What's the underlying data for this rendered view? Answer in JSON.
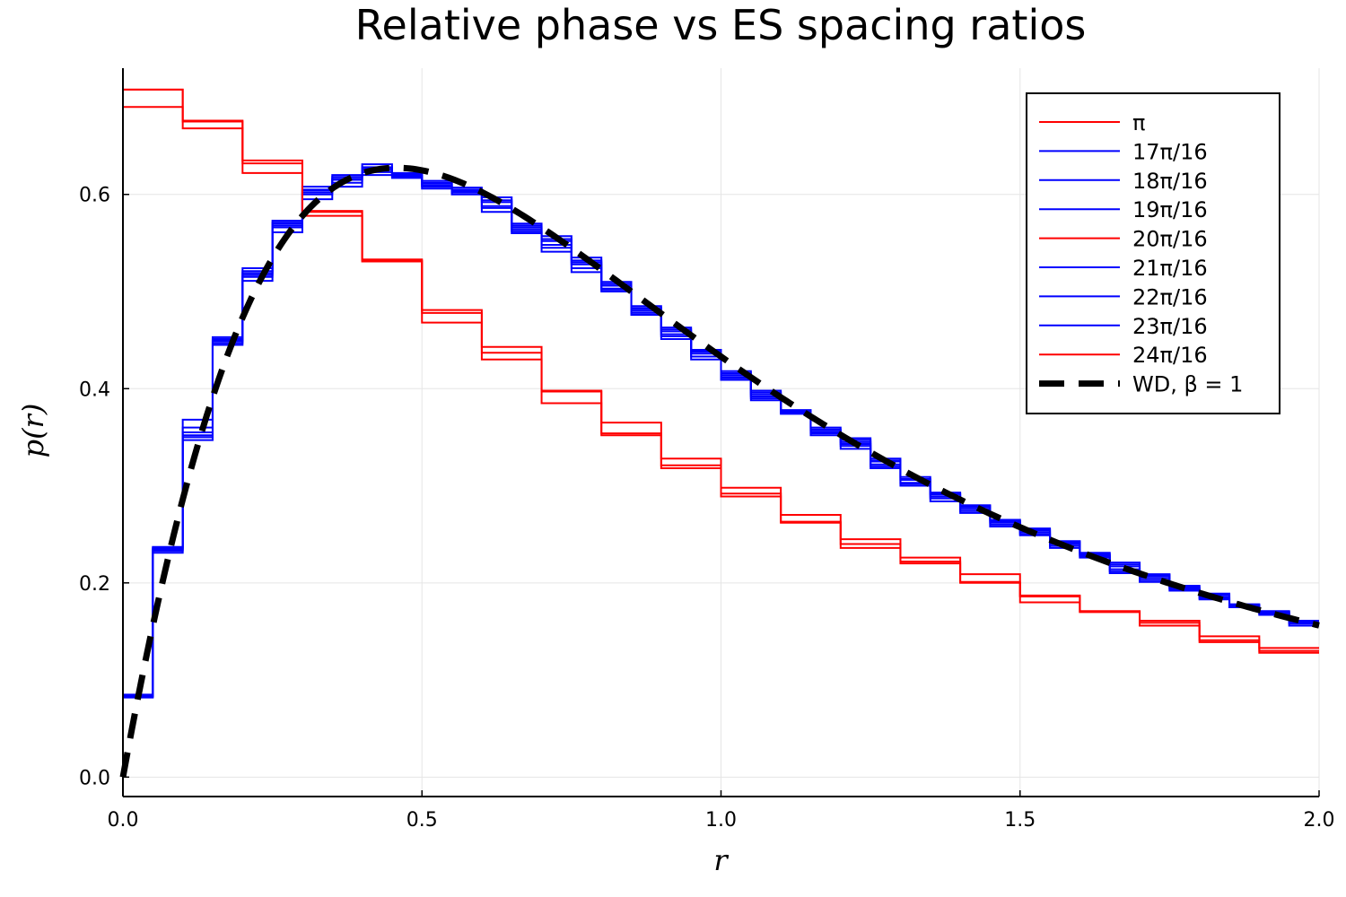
{
  "chart_data": {
    "type": "step",
    "title": "Relative phase vs ES spacing ratios",
    "xlabel": "r",
    "ylabel": "p(r)",
    "xlim": [
      0,
      2
    ],
    "ylim": [
      -0.02,
      0.73
    ],
    "xticks": [
      0,
      0.5,
      1,
      1.5,
      2
    ],
    "xtick_labels": [
      "0.0",
      "0.5",
      "1.0",
      "1.5",
      "2.0"
    ],
    "yticks": [
      0,
      0.2,
      0.4,
      0.6
    ],
    "ytick_labels": [
      "0.0",
      "0.2",
      "0.4",
      "0.6"
    ],
    "grid": true,
    "legend_position": "top-right",
    "bin_edges_blue": [
      0,
      0.05,
      0.1,
      0.15,
      0.2,
      0.25,
      0.3,
      0.35,
      0.4,
      0.45,
      0.5,
      0.55,
      0.6,
      0.65,
      0.7,
      0.75,
      0.8,
      0.85,
      0.9,
      0.95,
      1.0,
      1.05,
      1.1,
      1.15,
      1.2,
      1.25,
      1.3,
      1.35,
      1.4,
      1.45,
      1.5,
      1.55,
      1.6,
      1.65,
      1.7,
      1.75,
      1.8,
      1.85,
      1.9,
      1.95,
      2.0
    ],
    "bin_edges_red": [
      0,
      0.1,
      0.2,
      0.3,
      0.4,
      0.5,
      0.6,
      0.7,
      0.8,
      0.9,
      1.0,
      1.1,
      1.2,
      1.3,
      1.4,
      1.5,
      1.6,
      1.7,
      1.8,
      1.9,
      2.0
    ],
    "series": [
      {
        "name": "π",
        "color": "#ff0000",
        "binning": "red",
        "values": [
          0.708,
          0.675,
          0.635,
          0.583,
          0.533,
          0.481,
          0.443,
          0.398,
          0.365,
          0.328,
          0.298,
          0.27,
          0.245,
          0.226,
          0.209,
          0.187,
          0.171,
          0.161,
          0.145,
          0.133
        ]
      },
      {
        "name": "17π/16",
        "color": "#0000ff",
        "binning": "blue",
        "values": [
          0.083,
          0.237,
          0.368,
          0.453,
          0.524,
          0.573,
          0.608,
          0.62,
          0.631,
          0.622,
          0.614,
          0.607,
          0.597,
          0.57,
          0.557,
          0.535,
          0.51,
          0.485,
          0.463,
          0.44,
          0.418,
          0.398,
          0.378,
          0.36,
          0.349,
          0.328,
          0.309,
          0.293,
          0.28,
          0.265,
          0.256,
          0.243,
          0.231,
          0.221,
          0.209,
          0.197,
          0.189,
          0.178,
          0.171,
          0.161
        ]
      },
      {
        "name": "18π/16",
        "color": "#0000ff",
        "binning": "blue",
        "values": [
          0.082,
          0.234,
          0.352,
          0.449,
          0.517,
          0.568,
          0.6,
          0.612,
          0.625,
          0.617,
          0.609,
          0.603,
          0.588,
          0.564,
          0.548,
          0.528,
          0.503,
          0.48,
          0.456,
          0.436,
          0.412,
          0.392,
          0.374,
          0.354,
          0.343,
          0.322,
          0.303,
          0.289,
          0.276,
          0.262,
          0.252,
          0.24,
          0.228,
          0.214,
          0.205,
          0.194,
          0.185,
          0.176,
          0.169,
          0.16
        ]
      },
      {
        "name": "19π/16",
        "color": "#0000ff",
        "binning": "blue",
        "values": [
          0.085,
          0.231,
          0.347,
          0.445,
          0.511,
          0.561,
          0.595,
          0.608,
          0.62,
          0.62,
          0.606,
          0.6,
          0.582,
          0.56,
          0.541,
          0.52,
          0.5,
          0.476,
          0.451,
          0.43,
          0.409,
          0.388,
          0.376,
          0.352,
          0.338,
          0.318,
          0.3,
          0.284,
          0.272,
          0.258,
          0.249,
          0.236,
          0.226,
          0.21,
          0.201,
          0.192,
          0.183,
          0.175,
          0.167,
          0.156
        ]
      },
      {
        "name": "20π/16",
        "color": "#ff0000",
        "binning": "red",
        "values": [
          0.69,
          0.668,
          0.622,
          0.578,
          0.532,
          0.468,
          0.43,
          0.385,
          0.352,
          0.318,
          0.289,
          0.262,
          0.236,
          0.22,
          0.201,
          0.18,
          0.17,
          0.156,
          0.139,
          0.128
        ]
      },
      {
        "name": "21π/16",
        "color": "#0000ff",
        "binning": "blue",
        "values": [
          0.084,
          0.236,
          0.35,
          0.447,
          0.515,
          0.57,
          0.604,
          0.615,
          0.628,
          0.619,
          0.611,
          0.604,
          0.592,
          0.566,
          0.552,
          0.53,
          0.506,
          0.482,
          0.459,
          0.438,
          0.414,
          0.394,
          0.375,
          0.357,
          0.345,
          0.325,
          0.306,
          0.291,
          0.278,
          0.263,
          0.254,
          0.241,
          0.229,
          0.217,
          0.207,
          0.195,
          0.187,
          0.177,
          0.17,
          0.159
        ]
      },
      {
        "name": "22π/16",
        "color": "#0000ff",
        "binning": "blue",
        "values": [
          0.083,
          0.233,
          0.355,
          0.45,
          0.519,
          0.566,
          0.602,
          0.616,
          0.623,
          0.618,
          0.608,
          0.602,
          0.586,
          0.562,
          0.545,
          0.524,
          0.502,
          0.478,
          0.454,
          0.433,
          0.411,
          0.39,
          0.377,
          0.355,
          0.341,
          0.32,
          0.302,
          0.287,
          0.274,
          0.26,
          0.25,
          0.238,
          0.227,
          0.212,
          0.203,
          0.193,
          0.184,
          0.175,
          0.168,
          0.158
        ]
      },
      {
        "name": "23π/16",
        "color": "#0000ff",
        "binning": "blue",
        "values": [
          0.084,
          0.235,
          0.36,
          0.451,
          0.521,
          0.571,
          0.605,
          0.618,
          0.627,
          0.621,
          0.612,
          0.605,
          0.594,
          0.568,
          0.554,
          0.532,
          0.508,
          0.483,
          0.461,
          0.439,
          0.416,
          0.396,
          0.377,
          0.358,
          0.347,
          0.326,
          0.307,
          0.292,
          0.279,
          0.264,
          0.255,
          0.242,
          0.23,
          0.219,
          0.208,
          0.196,
          0.188,
          0.177,
          0.17,
          0.16
        ]
      },
      {
        "name": "24π/16",
        "color": "#ff0000",
        "binning": "red",
        "values": [
          0.708,
          0.676,
          0.632,
          0.582,
          0.531,
          0.478,
          0.437,
          0.397,
          0.354,
          0.321,
          0.292,
          0.263,
          0.24,
          0.222,
          0.2,
          0.186,
          0.17,
          0.159,
          0.141,
          0.13
        ]
      },
      {
        "name": "WD, β = 1",
        "color": "#000000",
        "style": "dashed",
        "formula": "(27/8)*(r+r^2)/(1+r+r^2)^(5/2)"
      }
    ]
  }
}
